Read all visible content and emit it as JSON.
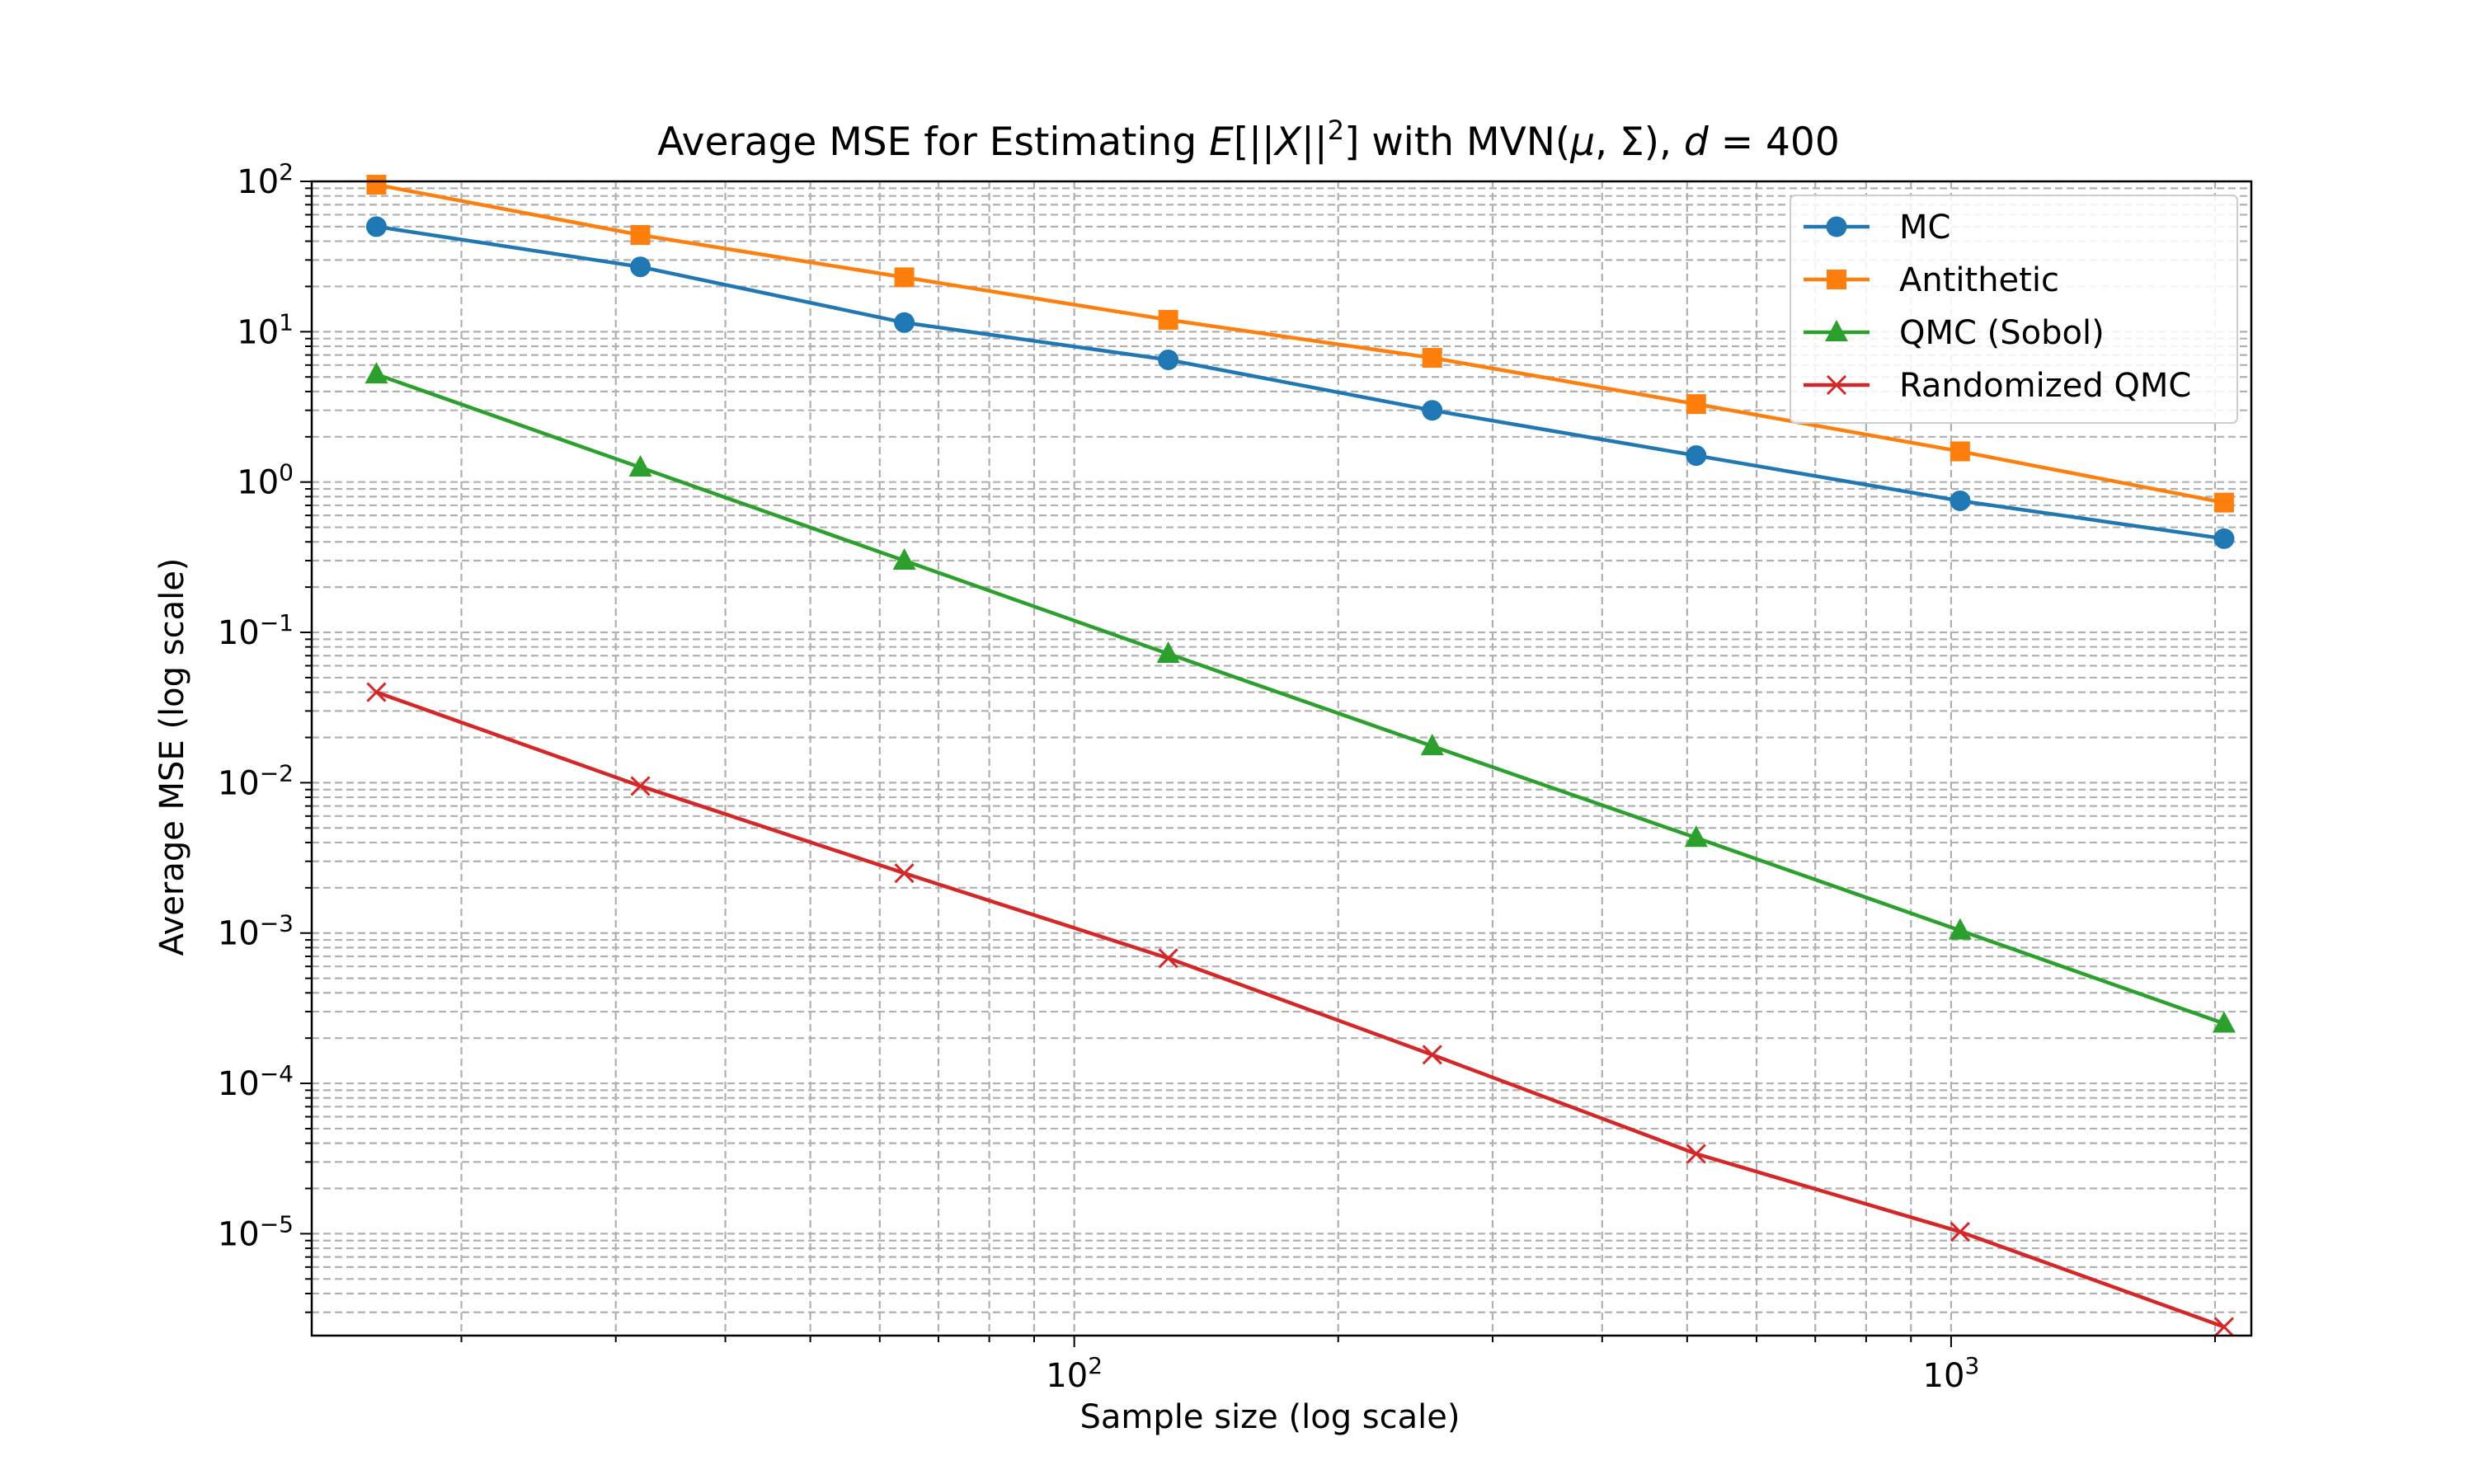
{
  "chart_data": {
    "type": "line",
    "title": "",
    "title_parts": {
      "prefix": "Average MSE for Estimating ",
      "e_symbol": "E",
      "bracket_open": "[||",
      "x_symbol": "X",
      "bracket_mid": "||",
      "exponent": "2",
      "bracket_close": "]",
      "with_text": " with MVN(",
      "mu_symbol": "μ",
      "sigma_text": ", Σ), ",
      "d_symbol": "d",
      "d_value": " = 400"
    },
    "xlabel": "Sample size (log scale)",
    "ylabel": "Average MSE (log scale)",
    "xscale": "log",
    "yscale": "log",
    "xlim": [
      13.5,
      2200
    ],
    "ylim": [
      2.1e-06,
      100
    ],
    "grid": true,
    "grid_style": "dashed, major and minor",
    "legend_position": "top-right",
    "x_ticks": [
      {
        "value": 100,
        "base": "10",
        "exp": "2"
      },
      {
        "value": 1000,
        "base": "10",
        "exp": "3"
      }
    ],
    "y_ticks": [
      {
        "value": 100,
        "base": "10",
        "exp": "2"
      },
      {
        "value": 10,
        "base": "10",
        "exp": "1"
      },
      {
        "value": 1,
        "base": "10",
        "exp": "0"
      },
      {
        "value": 0.1,
        "base": "10",
        "exp": "−1"
      },
      {
        "value": 0.01,
        "base": "10",
        "exp": "−2"
      },
      {
        "value": 0.001,
        "base": "10",
        "exp": "−3"
      },
      {
        "value": 0.0001,
        "base": "10",
        "exp": "−4"
      },
      {
        "value": 1e-05,
        "base": "10",
        "exp": "−5"
      }
    ],
    "x": [
      16,
      32,
      64,
      128,
      256,
      512,
      1024,
      2048
    ],
    "series": [
      {
        "name": "MC",
        "color": "#1f77b4",
        "marker": "circle",
        "values": [
          50,
          27,
          11.5,
          6.5,
          3.0,
          1.5,
          0.75,
          0.42
        ]
      },
      {
        "name": "Antithetic",
        "color": "#ff7f0e",
        "marker": "square",
        "values": [
          95,
          44,
          23,
          12,
          6.7,
          3.3,
          1.6,
          0.73
        ]
      },
      {
        "name": "QMC (Sobol)",
        "color": "#2ca02c",
        "marker": "triangle",
        "values": [
          5.2,
          1.25,
          0.3,
          0.072,
          0.0175,
          0.0043,
          0.00104,
          0.00025
        ]
      },
      {
        "name": "Randomized QMC",
        "color": "#d62728",
        "marker": "x",
        "values": [
          0.04,
          0.0095,
          0.0025,
          0.00068,
          0.000155,
          3.4e-05,
          1.03e-05,
          2.4e-06
        ]
      }
    ]
  }
}
